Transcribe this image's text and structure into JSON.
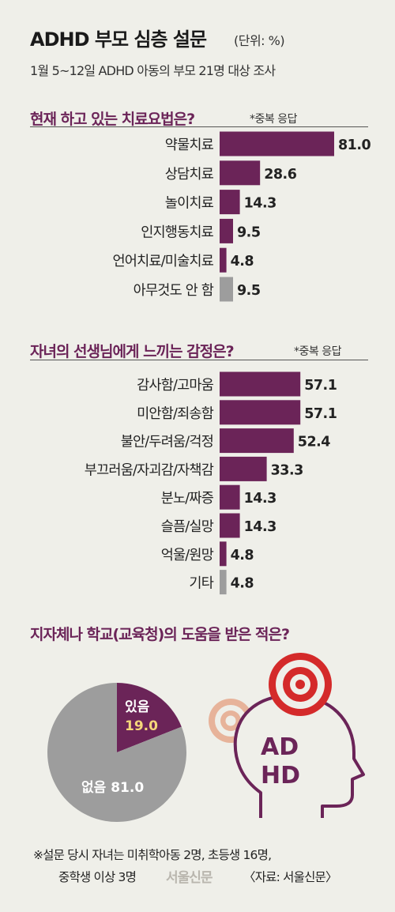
{
  "header": {
    "title": "ADHD 부모 심층 설문",
    "unit": "(단위: %)",
    "subtitle": "1월 5~12일 ADHD 아동의 부모 21명 대상 조사"
  },
  "chart_data": [
    {
      "type": "bar",
      "orientation": "horizontal",
      "title": "현재 하고 있는 치료요법은?",
      "note": "*중복 응답",
      "categories": [
        "약물치료",
        "상담치료",
        "놀이치료",
        "인지행동치료",
        "언어치료/미술치료",
        "아무것도 안 함"
      ],
      "values": [
        81.0,
        28.6,
        14.3,
        9.5,
        4.8,
        9.5
      ],
      "value_labels": [
        "81.0",
        "28.6",
        "14.3",
        "9.5",
        "4.8",
        "9.5"
      ],
      "bar_colors": [
        "#6b2458",
        "#6b2458",
        "#6b2458",
        "#6b2458",
        "#6b2458",
        "#9d9d9d"
      ]
    },
    {
      "type": "bar",
      "orientation": "horizontal",
      "title": "자녀의 선생님에게 느끼는 감정은?",
      "note": "*중복 응답",
      "categories": [
        "감사함/고마움",
        "미안함/죄송함",
        "불안/두려움/걱정",
        "부끄러움/자괴감/자책감",
        "분노/짜증",
        "슬픔/실망",
        "억울/원망",
        "기타"
      ],
      "values": [
        57.1,
        57.1,
        52.4,
        33.3,
        14.3,
        14.3,
        4.8,
        4.8
      ],
      "value_labels": [
        "57.1",
        "57.1",
        "52.4",
        "33.3",
        "14.3",
        "14.3",
        "4.8",
        "4.8"
      ],
      "bar_colors": [
        "#6b2458",
        "#6b2458",
        "#6b2458",
        "#6b2458",
        "#6b2458",
        "#6b2458",
        "#6b2458",
        "#9d9d9d"
      ]
    },
    {
      "type": "pie",
      "title": "지자체나 학교(교육청)의 도움을 받은 적은?",
      "slices": [
        {
          "name": "있음",
          "value": 19.0,
          "label": "19.0",
          "color": "#6b2458"
        },
        {
          "name": "없음",
          "value": 81.0,
          "label": "81.0",
          "color": "#9d9d9d"
        }
      ]
    }
  ],
  "illustration": {
    "head_text_1": "AD",
    "head_text_2": "HD",
    "icons": [
      "target-icon",
      "head-icon"
    ]
  },
  "footer": {
    "note_line1": "※설문 당시 자녀는 미취학아동 2명, 초등생 16명,",
    "note_line2": "중학생 이상 3명",
    "publisher_logo": "서울신문",
    "source": "〈자료: 서울신문〉"
  },
  "colors": {
    "accent": "#6b2458",
    "gray": "#9d9d9d",
    "target_red": "#d42a2a",
    "target_peach": "#e7b39a",
    "background": "#efefe9"
  }
}
